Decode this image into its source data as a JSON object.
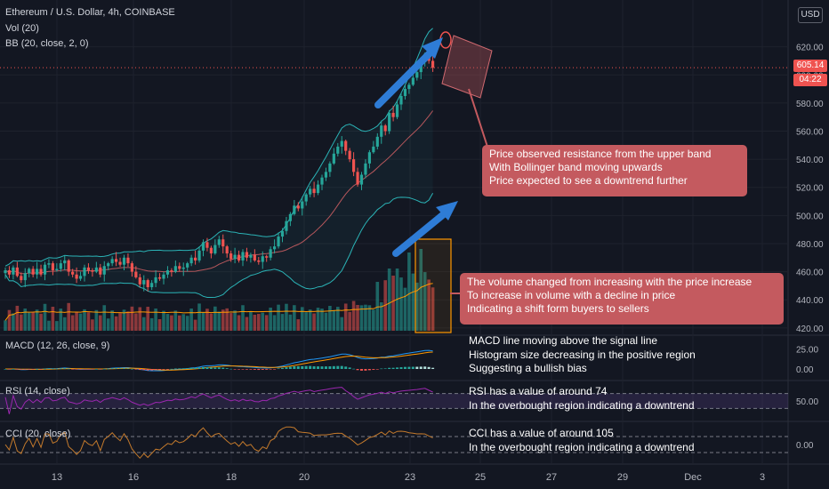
{
  "header": {
    "symbol": "Ethereum / U.S. Dollar, 4h, COINBASE",
    "volume_indicator": "Vol (20)",
    "bollinger_indicator": "BB (20, close, 2, 0)",
    "currency_button": "USD"
  },
  "price_tags": {
    "last_price": "605.14",
    "countdown": "04:22"
  },
  "panes": {
    "macd_label": "MACD (12, 26, close, 9)",
    "rsi_label": "RSI (14, close)",
    "cci_label": "CCI (20, close)"
  },
  "annotations": {
    "resistance_lines": [
      "Price observed resistance from the upper band",
      "With Bollinger band moving upwards",
      "Price expected to see a downtrend further"
    ],
    "volume_lines": [
      "The volume changed from increasing with the price increase",
      "To increase in volume with a decline in price",
      "Indicating a shift form buyers to sellers"
    ],
    "macd_lines": [
      "MACD line moving above the signal line",
      "Histogram size decreasing in the positive region",
      "Suggesting a bullish bias"
    ],
    "rsi_lines": [
      "RSI has a value of around 74",
      "In the overbought region indicating a downtrend"
    ],
    "cci_lines": [
      "CCI has a value of around 105",
      "In the overbought region indicating a downtrend"
    ]
  },
  "colors": {
    "background": "#131722",
    "up": "#26a69a",
    "down": "#ef5350",
    "bb_basis": "#b7575c",
    "bb_bands": "#2bb3b6",
    "macd_line": "#2196f3",
    "signal_line": "#ff9800",
    "rsi": "#9c27b0",
    "cci": "#c47a2c",
    "callout": "#c45a5f",
    "arrow": "#2e7cd6"
  },
  "chart_data": {
    "type": "candlestick",
    "title": "Ethereum / U.S. Dollar, 4h, COINBASE",
    "x_tick_labels": [
      "13",
      "16",
      "18",
      "20",
      "23",
      "25",
      "27",
      "29",
      "Dec",
      "3"
    ],
    "price_axis": {
      "ticks": [
        "620.00",
        "600.00",
        "580.00",
        "560.00",
        "540.00",
        "520.00",
        "500.00",
        "480.00",
        "460.00",
        "440.00",
        "420.00"
      ],
      "range": [
        418,
        628
      ]
    },
    "last_price": 605.14,
    "closes": [
      461,
      458,
      463,
      457,
      454,
      459,
      462,
      458,
      462,
      458,
      465,
      466,
      461,
      462,
      466,
      468,
      460,
      458,
      455,
      457,
      463,
      461,
      460,
      463,
      458,
      464,
      466,
      469,
      467,
      465,
      470,
      466,
      460,
      456,
      451,
      454,
      449,
      452,
      456,
      455,
      458,
      461,
      460,
      464,
      462,
      463,
      466,
      470,
      468,
      475,
      481,
      477,
      473,
      479,
      483,
      478,
      473,
      469,
      472,
      468,
      474,
      470,
      472,
      468,
      467,
      471,
      470,
      476,
      478,
      485,
      489,
      496,
      501,
      507,
      505,
      510,
      515,
      519,
      516,
      522,
      527,
      531,
      537,
      544,
      549,
      553,
      546,
      540,
      531,
      522,
      529,
      537,
      545,
      549,
      556,
      564,
      560,
      573,
      570,
      579,
      585,
      590,
      593,
      598,
      602,
      609,
      615,
      610,
      605.14
    ],
    "macd_axis": {
      "ticks": [
        "25.00",
        "0.00"
      ]
    },
    "rsi": {
      "axis_ticks": [
        "50.00"
      ],
      "overbought": 70,
      "oversold": 30,
      "latest": 74
    },
    "cci": {
      "axis_ticks": [
        "0.00"
      ],
      "upper": 100,
      "lower": -100,
      "latest": 105
    }
  }
}
